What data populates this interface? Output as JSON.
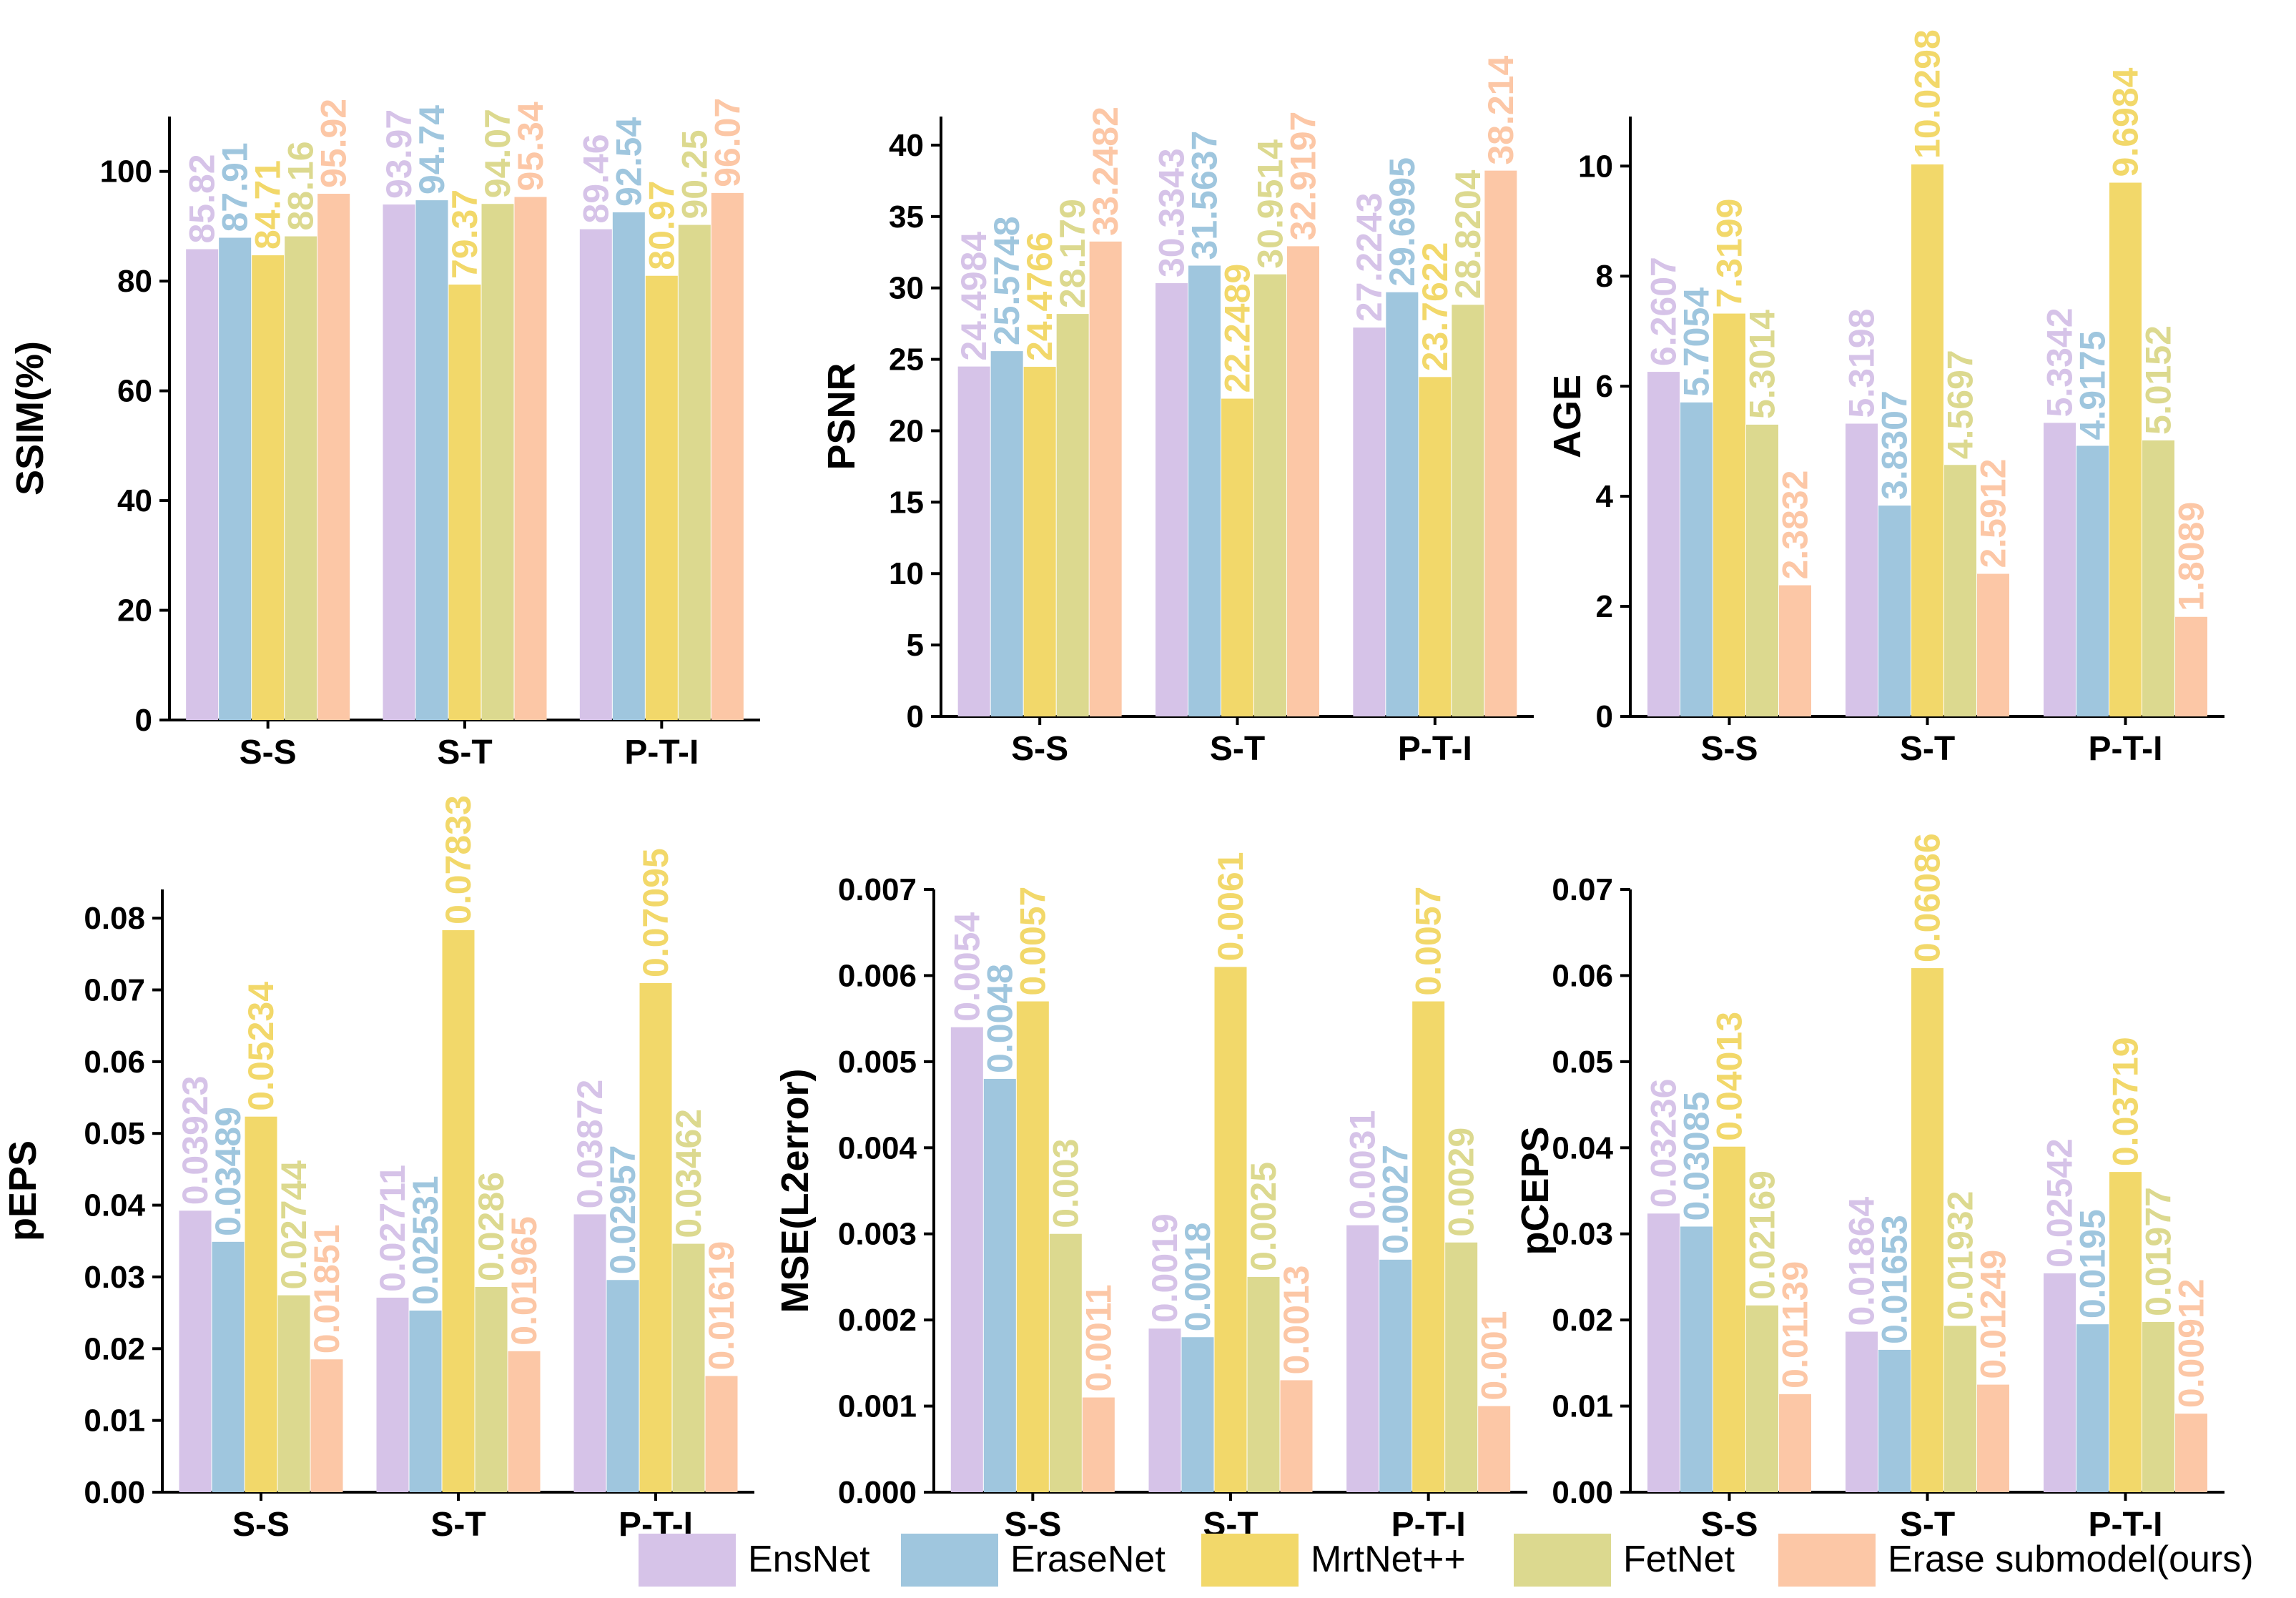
{
  "colors": {
    "EnsNet": "#d6c3e8",
    "EraseNet": "#9fc6de",
    "MrtNet++": "#f2d86a",
    "FetNet": "#dcd98f",
    "Erase submodel(ours)": "#fcc7a6"
  },
  "legend": {
    "items": [
      "EnsNet",
      "EraseNet",
      "MrtNet++",
      "FetNet",
      "Erase submodel(ours)"
    ]
  },
  "chart_data": [
    {
      "type": "bar",
      "ylabel": "SSIM(%)",
      "ylim": [
        0,
        110
      ],
      "yticks": [
        0,
        20,
        40,
        60,
        80,
        100
      ],
      "ytick_labels": [
        "0",
        "20",
        "40",
        "60",
        "80",
        "100"
      ],
      "categories": [
        "S-S",
        "S-T",
        "P-T-I"
      ],
      "series": [
        {
          "name": "EnsNet",
          "values": [
            85.82,
            93.97,
            89.46
          ],
          "labels": [
            "85.82",
            "93.97",
            "89.46"
          ]
        },
        {
          "name": "EraseNet",
          "values": [
            87.91,
            94.74,
            92.54
          ],
          "labels": [
            "87.91",
            "94.74",
            "92.54"
          ]
        },
        {
          "name": "MrtNet++",
          "values": [
            84.71,
            79.37,
            80.97
          ],
          "labels": [
            "84.71",
            "79.37",
            "80.97"
          ]
        },
        {
          "name": "FetNet",
          "values": [
            88.16,
            94.07,
            90.25
          ],
          "labels": [
            "88.16",
            "94.07",
            "90.25"
          ]
        },
        {
          "name": "Erase submodel(ours)",
          "values": [
            95.92,
            95.34,
            96.07
          ],
          "labels": [
            "95.92",
            "95.34",
            "96.07"
          ]
        }
      ]
    },
    {
      "type": "bar",
      "ylabel": "PSNR",
      "ylim": [
        0,
        42
      ],
      "yticks": [
        0,
        5,
        10,
        15,
        20,
        25,
        30,
        35,
        40
      ],
      "ytick_labels": [
        "0",
        "5",
        "10",
        "15",
        "20",
        "25",
        "30",
        "35",
        "40"
      ],
      "categories": [
        "S-S",
        "S-T",
        "P-T-I"
      ],
      "series": [
        {
          "name": "EnsNet",
          "values": [
            24.4984,
            30.3343,
            27.2243
          ],
          "labels": [
            "24.4984",
            "30.3343",
            "27.2243"
          ]
        },
        {
          "name": "EraseNet",
          "values": [
            25.5748,
            31.5637,
            29.6995
          ],
          "labels": [
            "25.5748",
            "31.5637",
            "29.6995"
          ]
        },
        {
          "name": "MrtNet++",
          "values": [
            24.4766,
            22.2489,
            23.7622
          ],
          "labels": [
            "24.4766",
            "22.2489",
            "23.7622"
          ]
        },
        {
          "name": "FetNet",
          "values": [
            28.179,
            30.9514,
            28.8204
          ],
          "labels": [
            "28.179",
            "30.9514",
            "28.8204"
          ]
        },
        {
          "name": "Erase submodel(ours)",
          "values": [
            33.2482,
            32.9197,
            38.214
          ],
          "labels": [
            "33.2482",
            "32.9197",
            "38.214"
          ]
        }
      ]
    },
    {
      "type": "bar",
      "ylabel": "AGE",
      "ylim": [
        0,
        10.9
      ],
      "yticks": [
        0,
        2,
        4,
        6,
        8,
        10
      ],
      "ytick_labels": [
        "0",
        "2",
        "4",
        "6",
        "8",
        "10"
      ],
      "categories": [
        "S-S",
        "S-T",
        "P-T-I"
      ],
      "series": [
        {
          "name": "EnsNet",
          "values": [
            6.2607,
            5.3198,
            5.3342
          ],
          "labels": [
            "6.2607",
            "5.3198",
            "5.3342"
          ]
        },
        {
          "name": "EraseNet",
          "values": [
            5.7054,
            3.8307,
            4.9175
          ],
          "labels": [
            "5.7054",
            "3.8307",
            "4.9175"
          ]
        },
        {
          "name": "MrtNet++",
          "values": [
            7.3199,
            10.0298,
            9.6984
          ],
          "labels": [
            "7.3199",
            "10.0298",
            "9.6984"
          ]
        },
        {
          "name": "FetNet",
          "values": [
            5.3014,
            4.5697,
            5.0152
          ],
          "labels": [
            "5.3014",
            "4.5697",
            "5.0152"
          ]
        },
        {
          "name": "Erase submodel(ours)",
          "values": [
            2.3832,
            2.5912,
            1.8089
          ],
          "labels": [
            "2.3832",
            "2.5912",
            "1.8089"
          ]
        }
      ]
    },
    {
      "type": "bar",
      "ylabel": "pEPS",
      "ylim": [
        0,
        0.084
      ],
      "yticks": [
        0,
        0.01,
        0.02,
        0.03,
        0.04,
        0.05,
        0.06,
        0.07,
        0.08
      ],
      "ytick_labels": [
        "0.00",
        "0.01",
        "0.02",
        "0.03",
        "0.04",
        "0.05",
        "0.06",
        "0.07",
        "0.08"
      ],
      "categories": [
        "S-S",
        "S-T",
        "P-T-I"
      ],
      "series": [
        {
          "name": "EnsNet",
          "values": [
            0.03923,
            0.02711,
            0.03872
          ],
          "labels": [
            "0.03923",
            "0.02711",
            "0.03872"
          ]
        },
        {
          "name": "EraseNet",
          "values": [
            0.03489,
            0.02531,
            0.02957
          ],
          "labels": [
            "0.03489",
            "0.02531",
            "0.02957"
          ]
        },
        {
          "name": "MrtNet++",
          "values": [
            0.05234,
            0.07833,
            0.07095
          ],
          "labels": [
            "0.05234",
            "0.07833",
            "0.07095"
          ]
        },
        {
          "name": "FetNet",
          "values": [
            0.02744,
            0.0286,
            0.03462
          ],
          "labels": [
            "0.02744",
            "0.0286",
            "0.03462"
          ]
        },
        {
          "name": "Erase submodel(ours)",
          "values": [
            0.01851,
            0.01965,
            0.01619
          ],
          "labels": [
            "0.01851",
            "0.01965",
            "0.01619"
          ]
        }
      ]
    },
    {
      "type": "bar",
      "ylabel": "MSE(L2error)",
      "ylim": [
        0,
        0.007
      ],
      "yticks": [
        0,
        0.001,
        0.002,
        0.003,
        0.004,
        0.005,
        0.006,
        0.007
      ],
      "ytick_labels": [
        "0.000",
        "0.001",
        "0.002",
        "0.003",
        "0.004",
        "0.005",
        "0.006",
        "0.007"
      ],
      "categories": [
        "S-S",
        "S-T",
        "P-T-I"
      ],
      "series": [
        {
          "name": "EnsNet",
          "values": [
            0.0054,
            0.0019,
            0.0031
          ],
          "labels": [
            "0.0054",
            "0.0019",
            "0.0031"
          ]
        },
        {
          "name": "EraseNet",
          "values": [
            0.0048,
            0.0018,
            0.0027
          ],
          "labels": [
            "0.0048",
            "0.0018",
            "0.0027"
          ]
        },
        {
          "name": "MrtNet++",
          "values": [
            0.0057,
            0.0061,
            0.0057
          ],
          "labels": [
            "0.0057",
            "0.0061",
            "0.0057"
          ]
        },
        {
          "name": "FetNet",
          "values": [
            0.003,
            0.0025,
            0.0029
          ],
          "labels": [
            "0.003",
            "0.0025",
            "0.0029"
          ]
        },
        {
          "name": "Erase submodel(ours)",
          "values": [
            0.0011,
            0.0013,
            0.001
          ],
          "labels": [
            "0.0011",
            "0.0013",
            "0.001"
          ]
        }
      ]
    },
    {
      "type": "bar",
      "ylabel": "pCEPS",
      "ylim": [
        0,
        0.07
      ],
      "yticks": [
        0,
        0.01,
        0.02,
        0.03,
        0.04,
        0.05,
        0.06,
        0.07
      ],
      "ytick_labels": [
        "0.00",
        "0.01",
        "0.02",
        "0.03",
        "0.04",
        "0.05",
        "0.06",
        "0.07"
      ],
      "categories": [
        "S-S",
        "S-T",
        "P-T-I"
      ],
      "series": [
        {
          "name": "EnsNet",
          "values": [
            0.03236,
            0.01864,
            0.02542
          ],
          "labels": [
            "0.03236",
            "0.01864",
            "0.02542"
          ]
        },
        {
          "name": "EraseNet",
          "values": [
            0.03085,
            0.01653,
            0.0195
          ],
          "labels": [
            "0.03085",
            "0.01653",
            "0.0195"
          ]
        },
        {
          "name": "MrtNet++",
          "values": [
            0.04013,
            0.06086,
            0.03719
          ],
          "labels": [
            "0.04013",
            "0.06086",
            "0.03719"
          ]
        },
        {
          "name": "FetNet",
          "values": [
            0.02169,
            0.01932,
            0.01977
          ],
          "labels": [
            "0.02169",
            "0.01932",
            "0.01977"
          ]
        },
        {
          "name": "Erase submodel(ours)",
          "values": [
            0.01139,
            0.01249,
            0.00912
          ],
          "labels": [
            "0.01139",
            "0.01249",
            "0.00912"
          ]
        }
      ]
    }
  ]
}
